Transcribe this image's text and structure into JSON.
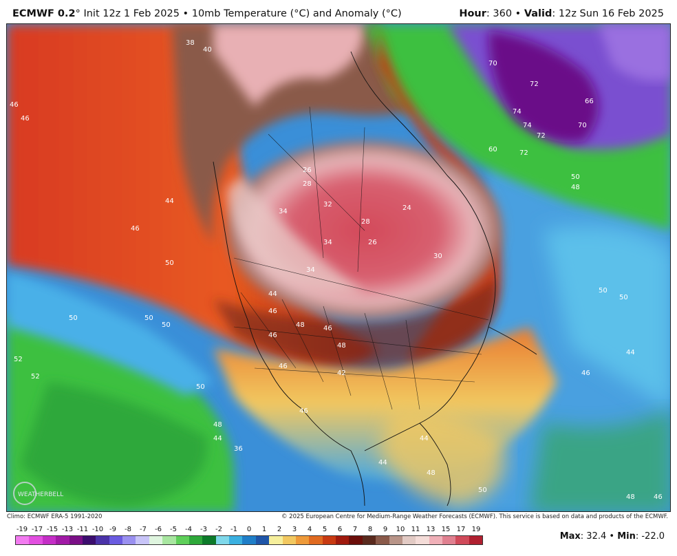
{
  "header": {
    "model": "ECMWF 0.2",
    "degree": "°",
    "init": " Init 12z 1 Feb 2025 • 10mb Temperature (°C) and Anomaly (°C)",
    "hour_label": "Hour",
    "hour_value": ": 360 • ",
    "valid_label": "Valid",
    "valid_value": ": 12z Sun 16 Feb 2025"
  },
  "footer": {
    "climo": "Climo: ECMWF ERA-5 1991-2020",
    "copyright": "© 2025 European Centre for Medium-Range Weather Forecasts (ECMWF). This service is based on data and products of the ECMWF.",
    "max_label": "Max",
    "max_value": ": 32.4 • ",
    "min_label": "Min",
    "min_value": ": -22.0"
  },
  "logo": {
    "text": "WEATHERBELL"
  },
  "colorbar": {
    "labels": [
      "-19",
      "-17",
      "-15",
      "-13",
      "-11",
      "-10",
      "-9",
      "-8",
      "-7",
      "-6",
      "-5",
      "-4",
      "-3",
      "-2",
      "-1",
      "0",
      "1",
      "2",
      "3",
      "4",
      "5",
      "6",
      "7",
      "8",
      "9",
      "10",
      "11",
      "13",
      "15",
      "17",
      "19"
    ],
    "colors": [
      "#f27bf0",
      "#e24fe0",
      "#c42ec6",
      "#a11aa6",
      "#7a0f86",
      "#3c0d6e",
      "#4b33a8",
      "#6a5be0",
      "#9a90f0",
      "#c8c4f8",
      "#dff5df",
      "#a8e6a0",
      "#5fcf5a",
      "#2ea83a",
      "#0d7a2a",
      "#7fd8ea",
      "#3bb0e0",
      "#1f7ec8",
      "#1f55a8",
      "#f6ef9c",
      "#f2c860",
      "#ee9a3a",
      "#e06a20",
      "#c83a12",
      "#a01a0e",
      "#6c0e0a",
      "#5a2a1e",
      "#8a5a4a",
      "#b89488",
      "#e2cac4",
      "#f4dcd8",
      "#f0b0b8",
      "#e08090",
      "#d04a5a",
      "#b02030"
    ]
  },
  "map_labels": {
    "contours": [
      "46",
      "46",
      "44",
      "46",
      "50",
      "50",
      "50",
      "50",
      "52",
      "52",
      "50",
      "48",
      "44",
      "36",
      "38",
      "40",
      "34",
      "26",
      "28",
      "32",
      "34",
      "28",
      "26",
      "24",
      "30",
      "34",
      "44",
      "46",
      "48",
      "46",
      "48",
      "42",
      "46",
      "46",
      "50",
      "46",
      "44",
      "48",
      "48",
      "46",
      "44",
      "50",
      "46",
      "44",
      "50",
      "70",
      "74",
      "72",
      "72",
      "74",
      "70",
      "72",
      "66",
      "60",
      "50",
      "48"
    ],
    "contour_positions_note": ""
  }
}
